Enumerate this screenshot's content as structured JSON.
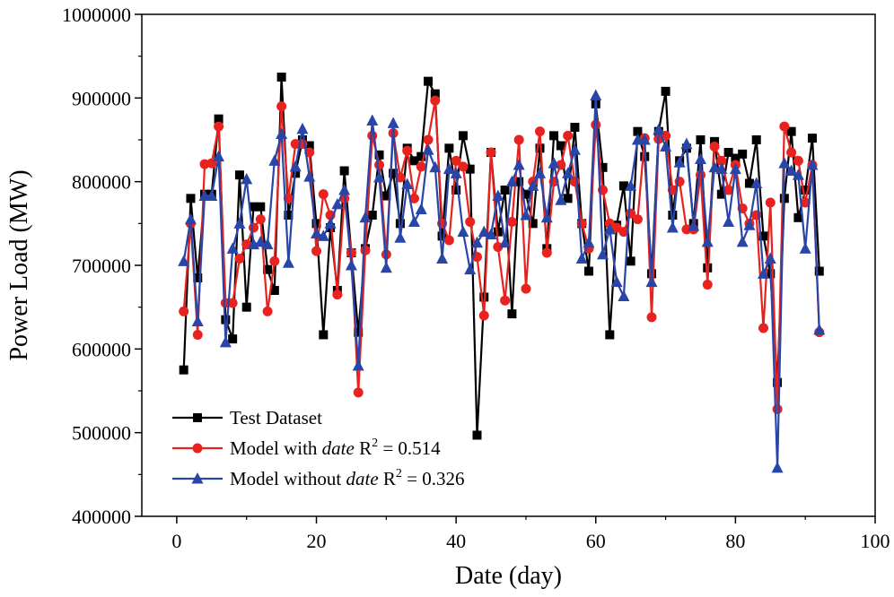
{
  "chart_data": {
    "type": "line",
    "title": "",
    "xlabel": "Date (day)",
    "ylabel": "Power Load (MW)",
    "xlim": [
      -5,
      100
    ],
    "ylim": [
      400000,
      1000000
    ],
    "xticks": [
      0,
      20,
      40,
      60,
      80,
      100
    ],
    "xtick_labels": [
      "0",
      "20",
      "40",
      "60",
      "80",
      "100"
    ],
    "yticks": [
      400000,
      500000,
      600000,
      700000,
      800000,
      900000,
      1000000
    ],
    "ytick_labels": [
      "400000",
      "500000",
      "600000",
      "700000",
      "800000",
      "900000",
      "1000000"
    ],
    "grid": false,
    "legend_position": "bottom-left",
    "series": [
      {
        "name": "Test Dataset",
        "label_parts": [
          "Test Dataset"
        ],
        "color": "#000000",
        "marker": "square",
        "x": [
          1,
          2,
          3,
          4,
          5,
          6,
          7,
          8,
          9,
          10,
          11,
          12,
          13,
          14,
          15,
          16,
          17,
          18,
          19,
          20,
          21,
          22,
          23,
          24,
          25,
          26,
          27,
          28,
          29,
          30,
          31,
          32,
          33,
          34,
          35,
          36,
          37,
          38,
          39,
          40,
          41,
          42,
          43,
          44,
          45,
          46,
          47,
          48,
          49,
          50,
          51,
          52,
          53,
          54,
          55,
          56,
          57,
          58,
          59,
          60,
          61,
          62,
          63,
          64,
          65,
          66,
          67,
          68,
          69,
          70,
          71,
          72,
          73,
          74,
          75,
          76,
          77,
          78,
          79,
          80,
          81,
          82,
          83,
          84,
          85,
          86,
          87,
          88,
          89,
          90,
          91,
          92
        ],
        "y": [
          575000,
          780000,
          685000,
          785000,
          785000,
          875000,
          635000,
          612000,
          808000,
          650000,
          770000,
          770000,
          695000,
          670000,
          925000,
          760000,
          810000,
          850000,
          843000,
          750000,
          617000,
          745000,
          670000,
          813000,
          715000,
          620000,
          720000,
          760000,
          832000,
          783000,
          810000,
          750000,
          840000,
          825000,
          830000,
          920000,
          905000,
          735000,
          840000,
          790000,
          855000,
          815000,
          497000,
          662000,
          835000,
          740000,
          790000,
          642000,
          800000,
          785000,
          750000,
          840000,
          720000,
          855000,
          843000,
          780000,
          865000,
          750000,
          693000,
          893000,
          817000,
          617000,
          748000,
          795000,
          705000,
          860000,
          830000,
          690000,
          860000,
          908000,
          760000,
          825000,
          840000,
          750000,
          850000,
          697000,
          848000,
          785000,
          835000,
          828000,
          833000,
          798000,
          850000,
          735000,
          690000,
          560000,
          780000,
          860000,
          757000,
          790000,
          852000,
          693000
        ]
      },
      {
        "name": "Model with date R² = 0.514",
        "label_parts": [
          "Model with ",
          "date",
          " R",
          "2",
          " = 0.514"
        ],
        "color": "#e8221e",
        "marker": "circle",
        "x": [
          1,
          2,
          3,
          4,
          5,
          6,
          7,
          8,
          9,
          10,
          11,
          12,
          13,
          14,
          15,
          16,
          17,
          18,
          19,
          20,
          21,
          22,
          23,
          24,
          25,
          26,
          27,
          28,
          29,
          30,
          31,
          32,
          33,
          34,
          35,
          36,
          37,
          38,
          39,
          40,
          41,
          42,
          43,
          44,
          45,
          46,
          47,
          48,
          49,
          50,
          51,
          52,
          53,
          54,
          55,
          56,
          57,
          58,
          59,
          60,
          61,
          62,
          63,
          64,
          65,
          66,
          67,
          68,
          69,
          70,
          71,
          72,
          73,
          74,
          75,
          76,
          77,
          78,
          79,
          80,
          81,
          82,
          83,
          84,
          85,
          86,
          87,
          88,
          89,
          90,
          91,
          92
        ],
        "y": [
          645000,
          750000,
          617000,
          821000,
          822000,
          866000,
          655000,
          655000,
          708000,
          725000,
          745000,
          755000,
          645000,
          705000,
          890000,
          780000,
          845000,
          845000,
          835000,
          717000,
          785000,
          760000,
          665000,
          780000,
          715000,
          548000,
          718000,
          855000,
          820000,
          713000,
          858000,
          805000,
          837000,
          780000,
          818000,
          850000,
          897000,
          750000,
          730000,
          825000,
          818000,
          752000,
          710000,
          640000,
          835000,
          722000,
          658000,
          752000,
          850000,
          672000,
          800000,
          860000,
          715000,
          800000,
          820000,
          855000,
          800000,
          750000,
          720000,
          868000,
          790000,
          750000,
          745000,
          740000,
          762000,
          755000,
          852000,
          638000,
          851000,
          855000,
          790000,
          800000,
          743000,
          743000,
          808000,
          677000,
          842000,
          825000,
          790000,
          820000,
          768000,
          750000,
          760000,
          625000,
          775000,
          528000,
          866000,
          835000,
          825000,
          775000,
          820000,
          620000
        ]
      },
      {
        "name": "Model without date R² = 0.326",
        "label_parts": [
          "Model without ",
          "date",
          " R",
          "2",
          " = 0.326"
        ],
        "color": "#2a45a8",
        "marker": "triangle",
        "x": [
          1,
          2,
          3,
          4,
          5,
          6,
          7,
          8,
          9,
          10,
          11,
          12,
          13,
          14,
          15,
          16,
          17,
          18,
          19,
          20,
          21,
          22,
          23,
          24,
          25,
          26,
          27,
          28,
          29,
          30,
          31,
          32,
          33,
          34,
          35,
          36,
          37,
          38,
          39,
          40,
          41,
          42,
          43,
          44,
          45,
          46,
          47,
          48,
          49,
          50,
          51,
          52,
          53,
          54,
          55,
          56,
          57,
          58,
          59,
          60,
          61,
          62,
          63,
          64,
          65,
          66,
          67,
          68,
          69,
          70,
          71,
          72,
          73,
          74,
          75,
          76,
          77,
          78,
          79,
          80,
          81,
          82,
          83,
          84,
          85,
          86,
          87,
          88,
          89,
          90,
          91,
          92
        ],
        "y": [
          705000,
          755000,
          633000,
          783000,
          783000,
          830000,
          608000,
          720000,
          750000,
          803000,
          725000,
          728000,
          725000,
          825000,
          857000,
          703000,
          818000,
          863000,
          806000,
          738000,
          735000,
          750000,
          773000,
          790000,
          700000,
          580000,
          757000,
          873000,
          805000,
          697000,
          870000,
          733000,
          797000,
          752000,
          767000,
          838000,
          817000,
          708000,
          815000,
          810000,
          740000,
          695000,
          727000,
          740000,
          737000,
          783000,
          727000,
          800000,
          820000,
          760000,
          795000,
          810000,
          757000,
          822000,
          778000,
          810000,
          838000,
          708000,
          727000,
          903000,
          713000,
          743000,
          680000,
          663000,
          795000,
          850000,
          850000,
          680000,
          862000,
          842000,
          745000,
          823000,
          845000,
          747000,
          827000,
          728000,
          817000,
          815000,
          752000,
          815000,
          728000,
          748000,
          798000,
          690000,
          708000,
          458000,
          822000,
          813000,
          808000,
          720000,
          820000,
          623000
        ]
      }
    ]
  }
}
